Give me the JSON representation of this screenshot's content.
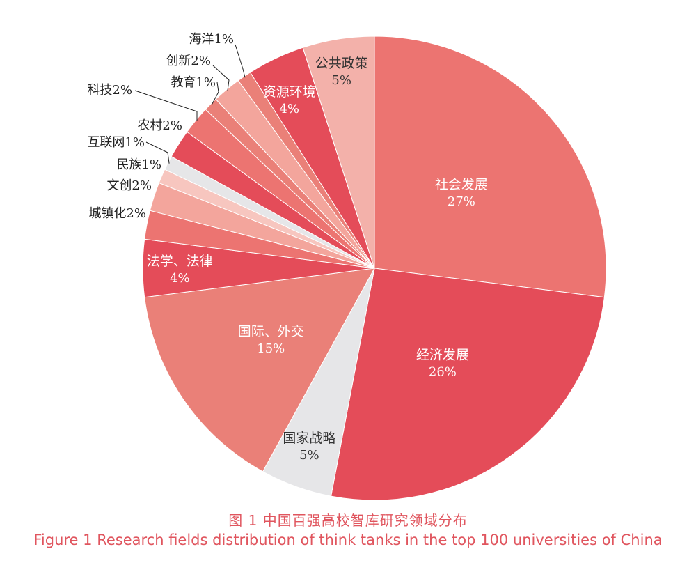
{
  "chart_data": {
    "type": "pie",
    "title_cn": "图 1  中国百强高校智库研究领域分布",
    "title_en": "Figure 1  Research fields distribution of think tanks in the top 100 universities of China",
    "slices": [
      {
        "label": "社会发展",
        "pct_label": "27%",
        "value": 27,
        "color": "#ec7471",
        "label_pos": "inside"
      },
      {
        "label": "经济发展",
        "pct_label": "26%",
        "value": 26,
        "color": "#e44c59",
        "label_pos": "inside"
      },
      {
        "label": "国家战略",
        "pct_label": "5%",
        "value": 5,
        "color": "#e6e6e8",
        "label_pos": "inside",
        "dark_text": true
      },
      {
        "label": "国际、外交",
        "pct_label": "15%",
        "value": 15,
        "color": "#ea8078",
        "label_pos": "inside"
      },
      {
        "label": "法学、法律",
        "pct_label": "4%",
        "value": 4,
        "color": "#e44c59",
        "label_pos": "inside"
      },
      {
        "label": "城镇化2%",
        "value": 2,
        "color": "#ec7471",
        "label_pos": "outside"
      },
      {
        "label": "文创2%",
        "value": 2,
        "color": "#f3a59c",
        "label_pos": "outside"
      },
      {
        "label": "民族1%",
        "value": 1,
        "color": "#f7c6bf",
        "label_pos": "outside"
      },
      {
        "label": "互联网1%",
        "value": 1,
        "color": "#e6e6e8",
        "label_pos": "outside",
        "leader": true
      },
      {
        "label": "农村2%",
        "value": 2,
        "color": "#e44c59",
        "label_pos": "outside"
      },
      {
        "label": "科技2%",
        "value": 2,
        "color": "#ec7471",
        "label_pos": "outside",
        "leader": true
      },
      {
        "label": "教育1%",
        "value": 1,
        "color": "#ea8078",
        "label_pos": "outside",
        "leader": true
      },
      {
        "label": "创新2%",
        "value": 2,
        "color": "#f3a59c",
        "label_pos": "outside",
        "leader": true
      },
      {
        "label": "海洋1%",
        "value": 1,
        "color": "#ea8078",
        "label_pos": "outside",
        "leader": true
      },
      {
        "label": "资源环境",
        "pct_label": "4%",
        "value": 4,
        "color": "#e44c59",
        "label_pos": "inside"
      },
      {
        "label": "公共政策",
        "pct_label": "5%",
        "value": 5,
        "color": "#f3b1aa",
        "label_pos": "inside",
        "dark_text": true
      }
    ]
  }
}
